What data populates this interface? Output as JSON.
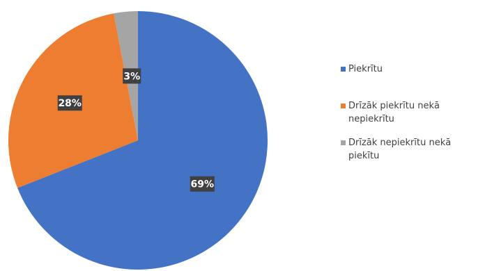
{
  "chart_data": {
    "type": "pie",
    "categories": [
      "Piekrītu",
      "Drīzāk piekrītu nekā nepiekrītu",
      "Drīzāk nepiekrītu nekā piekītu"
    ],
    "legend_labels": [
      "Piekrītu",
      "Drīzāk piekrītu nekā\nnepiekrītu",
      "Drīzāk nepiekrītu nekā\npiekītu"
    ],
    "values": [
      69,
      28,
      3
    ],
    "data_labels": [
      "69%",
      "28%",
      "3%"
    ],
    "colors": [
      "#4472C4",
      "#ED7D31",
      "#A5A5A5"
    ],
    "label_background": "#404040",
    "legend_position": "right",
    "start": "top",
    "direction": "clockwise"
  }
}
